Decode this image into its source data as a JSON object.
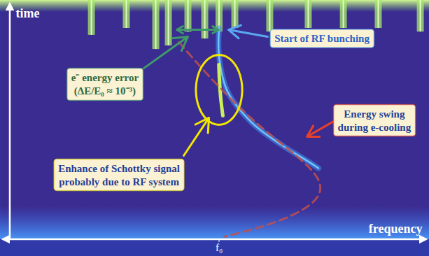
{
  "chart_data": {
    "type": "spectrogram",
    "x_label": "frequency",
    "y_label": "time",
    "xlim": [
      -1.04,
      1.0
    ],
    "ylim": [
      0,
      1
    ],
    "xticks": [
      {
        "value": 0,
        "label": "f₀"
      }
    ],
    "tick_labels": "x",
    "signal": {
      "color": "#3f8ff0",
      "x": [
        0.0,
        0.0,
        0.04,
        0.157,
        0.29,
        0.423,
        0.473
      ],
      "y": [
        0.883,
        0.766,
        0.62,
        0.488,
        0.4,
        0.327,
        0.298
      ]
    },
    "enhanced_signal": {
      "color": "#c8f05a",
      "x": [
        -0.001,
        0.002,
        0.008,
        0.018
      ],
      "y": [
        0.731,
        0.664,
        0.591,
        0.518
      ]
    },
    "rf_bursts": {
      "color": "#a6e86a",
      "x": [
        -0.607,
        -0.441,
        -0.301,
        -0.241,
        -0.148,
        -0.068,
        0.0,
        0.075,
        0.241,
        0.424,
        0.591,
        0.757,
        0.957
      ],
      "y": [
        0.854,
        0.883,
        0.795,
        0.81,
        0.868,
        0.839,
        0.868,
        0.883,
        0.868,
        0.883,
        0.883,
        0.883,
        0.868
      ]
    },
    "swing_curve": {
      "color": "#c0504d",
      "line_style": "dashed",
      "x": [
        -0.191,
        -0.042,
        0.158,
        0.358,
        0.474,
        0.441,
        0.258,
        0.025
      ],
      "y": [
        0.825,
        0.678,
        0.503,
        0.357,
        0.246,
        0.152,
        0.07,
        0.012
      ]
    },
    "highlight": {
      "color": "#f2e600",
      "x": 0,
      "y": 0.626,
      "rx": 0.11,
      "ry": 0.146
    },
    "annotations": [
      {
        "text": [
          "Start of RF bunching"
        ],
        "x": 0.491,
        "y": 0.839,
        "color": "#2a62c9",
        "arrow": {
          "x1": 0.231,
          "y1": 0.848,
          "x2": 0.045,
          "y2": 0.877,
          "color": "#5aa8f0"
        }
      },
      {
        "text": [
          "e⁻ energy error",
          "(ΔE/E₀ ≈ 10⁻³)"
        ],
        "x": -0.541,
        "y": 0.649,
        "color": "#2e6b3e",
        "arrow": {
          "x1": -0.358,
          "y1": 0.716,
          "x2": -0.148,
          "y2": 0.848,
          "color": "#3f9a6a"
        }
      },
      {
        "text": [
          "Enhance of Schottky signal",
          "probably due to RF system"
        ],
        "x": -0.474,
        "y": 0.269,
        "color": "#1f3f99",
        "arrow": {
          "x1": -0.168,
          "y1": 0.351,
          "x2": -0.048,
          "y2": 0.509,
          "color": "#f2e600"
        }
      },
      {
        "text": [
          "Energy swing",
          "during e-cooling"
        ],
        "x": 0.74,
        "y": 0.497,
        "color": "#1f3f99",
        "arrow": {
          "x1": 0.574,
          "y1": 0.509,
          "x2": 0.418,
          "y2": 0.43,
          "color": "#e8402a"
        }
      }
    ],
    "arrows": [
      {
        "x1": -0.101,
        "y1": 0.877,
        "x2": -0.201,
        "y2": 0.877,
        "color": "#3f9a6a"
      },
      {
        "x1": -0.101,
        "y1": 0.877,
        "x2": -0.002,
        "y2": 0.877,
        "color": "#3f9a6a"
      }
    ]
  }
}
